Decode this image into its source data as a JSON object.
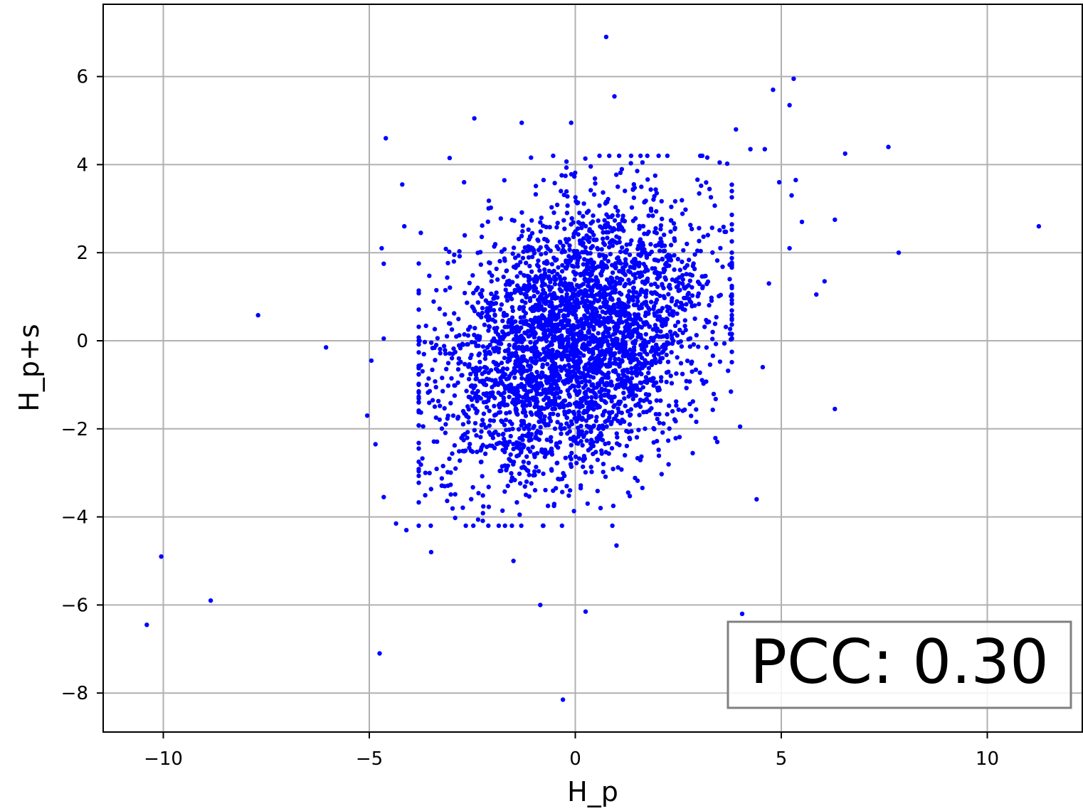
{
  "chart_data": {
    "type": "scatter",
    "xlabel": "H_p",
    "ylabel": "H_p+s",
    "xlim": [
      -11.5,
      12.3
    ],
    "ylim": [
      -8.9,
      7.6
    ],
    "x_ticks": [
      -10,
      -5,
      0,
      5,
      10
    ],
    "y_ticks": [
      -8,
      -6,
      -4,
      -2,
      0,
      2,
      4,
      6
    ],
    "x_tick_labels": [
      "−10",
      "−5",
      "0",
      "5",
      "10"
    ],
    "y_tick_labels": [
      "−8",
      "−6",
      "−4",
      "−2",
      "0",
      "2",
      "4",
      "6"
    ],
    "grid": true,
    "marker_color": "#0000ff",
    "annotation": {
      "text": "PCC: 0.30",
      "position": "bottom-right"
    },
    "point_count_main": 3500,
    "distribution": {
      "x_mean": 0.0,
      "x_std": 1.6,
      "y_mean": 0.0,
      "y_std": 1.55,
      "correlation": 0.3
    },
    "outliers": [
      {
        "x": 0.75,
        "y": 6.9
      },
      {
        "x": 5.3,
        "y": 5.95
      },
      {
        "x": 4.8,
        "y": 5.7
      },
      {
        "x": 5.2,
        "y": 5.35
      },
      {
        "x": 0.95,
        "y": 5.55
      },
      {
        "x": -2.45,
        "y": 5.05
      },
      {
        "x": -1.3,
        "y": 4.95
      },
      {
        "x": -0.1,
        "y": 4.95
      },
      {
        "x": -4.6,
        "y": 4.6
      },
      {
        "x": -3.05,
        "y": 4.15
      },
      {
        "x": 3.9,
        "y": 4.8
      },
      {
        "x": 4.25,
        "y": 4.35
      },
      {
        "x": 4.6,
        "y": 4.35
      },
      {
        "x": 6.55,
        "y": 4.25
      },
      {
        "x": 7.6,
        "y": 4.4
      },
      {
        "x": -4.2,
        "y": 3.55
      },
      {
        "x": -2.7,
        "y": 3.6
      },
      {
        "x": 4.95,
        "y": 3.6
      },
      {
        "x": 5.35,
        "y": 3.65
      },
      {
        "x": 5.25,
        "y": 3.3
      },
      {
        "x": 5.5,
        "y": 2.7
      },
      {
        "x": 6.3,
        "y": 2.75
      },
      {
        "x": 11.25,
        "y": 2.6
      },
      {
        "x": 7.85,
        "y": 2.0
      },
      {
        "x": 5.2,
        "y": 2.1
      },
      {
        "x": -4.15,
        "y": 2.6
      },
      {
        "x": -3.75,
        "y": 2.45
      },
      {
        "x": -4.7,
        "y": 2.1
      },
      {
        "x": -4.65,
        "y": 1.75
      },
      {
        "x": -7.7,
        "y": 0.58
      },
      {
        "x": -6.05,
        "y": -0.15
      },
      {
        "x": -4.95,
        "y": -0.45
      },
      {
        "x": -4.65,
        "y": 0.05
      },
      {
        "x": 5.85,
        "y": 1.05
      },
      {
        "x": 6.05,
        "y": 1.35
      },
      {
        "x": 4.7,
        "y": 1.3
      },
      {
        "x": 4.55,
        "y": -0.6
      },
      {
        "x": 6.3,
        "y": -1.55
      },
      {
        "x": 4.0,
        "y": -1.95
      },
      {
        "x": 4.4,
        "y": -3.6
      },
      {
        "x": -5.05,
        "y": -1.7
      },
      {
        "x": -4.85,
        "y": -2.35
      },
      {
        "x": -4.65,
        "y": -3.55
      },
      {
        "x": -4.35,
        "y": -4.15
      },
      {
        "x": -4.1,
        "y": -4.3
      },
      {
        "x": -3.5,
        "y": -4.8
      },
      {
        "x": -1.5,
        "y": -5.0
      },
      {
        "x": 1.0,
        "y": -4.65
      },
      {
        "x": -0.85,
        "y": -6.0
      },
      {
        "x": 0.25,
        "y": -6.15
      },
      {
        "x": 4.05,
        "y": -6.2
      },
      {
        "x": -10.05,
        "y": -4.9
      },
      {
        "x": -8.85,
        "y": -5.9
      },
      {
        "x": -10.4,
        "y": -6.45
      },
      {
        "x": -4.75,
        "y": -7.1
      },
      {
        "x": -0.3,
        "y": -8.15
      }
    ]
  }
}
